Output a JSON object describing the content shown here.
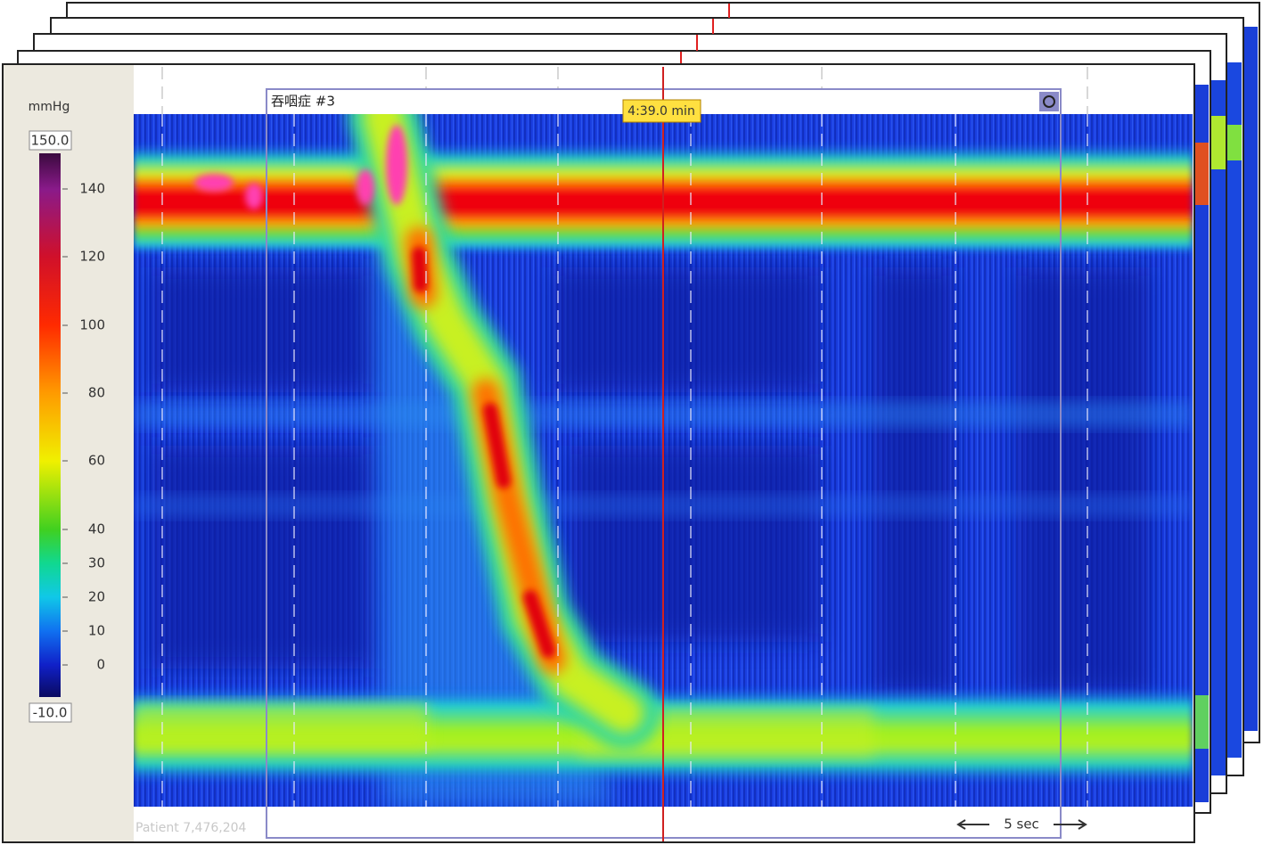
{
  "header": {
    "unit": "mmHg",
    "max_label": "150.0",
    "min_label": "-10.0"
  },
  "scale": {
    "ticks": [
      140,
      120,
      100,
      80,
      60,
      40,
      30,
      20,
      10,
      0
    ]
  },
  "panel": {
    "title": "吞咽症 #3",
    "time": "4:39.0 min"
  },
  "footer": {
    "patient": "Patient 7,476,204",
    "scale_bar": "5 sec"
  }
}
